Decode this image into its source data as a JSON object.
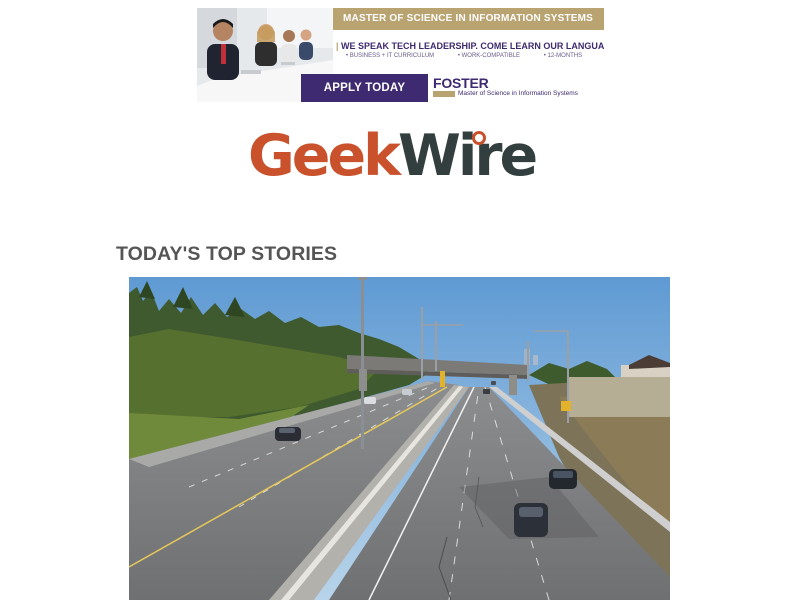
{
  "ad": {
    "headline": "MASTER OF SCIENCE IN INFORMATION SYSTEMS",
    "tagline": "WE SPEAK TECH LEADERSHIP. COME LEARN OUR LANGUAGE.",
    "points": [
      "• BUSINESS + IT CURRICULUM",
      "• WORK-COMPATIBLE",
      "• 12-MONTHS"
    ],
    "cta": "APPLY TODAY",
    "brand": "FOSTER",
    "brand_sub": "Master of Science in Information Systems"
  },
  "logo": {
    "part1": "Geek",
    "part2": "Wire"
  },
  "section": {
    "title": "TODAY'S TOP STORIES"
  },
  "colors": {
    "brand_orange": "#c9512c",
    "brand_dark": "#333f3f",
    "ad_purple": "#3d2a70",
    "ad_gold": "#b9a371"
  },
  "icons": {
    "logo_mark": "ring-dot-icon"
  }
}
